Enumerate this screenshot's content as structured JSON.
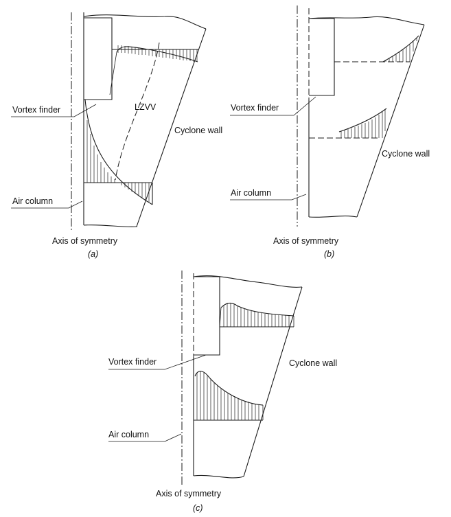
{
  "diagrams": [
    {
      "caption": "(a)",
      "labels": {
        "vortex_finder": "Vortex finder",
        "air_column": "Air column",
        "axis": "Axis of symmetry",
        "wall": "Cyclone wall",
        "lzvv": "LZVV"
      }
    },
    {
      "caption": "(b)",
      "labels": {
        "vortex_finder": "Vortex finder",
        "air_column": "Air column",
        "axis": "Axis of symmetry",
        "wall": "Cyclone wall"
      }
    },
    {
      "caption": "(c)",
      "labels": {
        "vortex_finder": "Vortex finder",
        "air_column": "Air column",
        "axis": "Axis of symmetry",
        "wall": "Cyclone wall"
      }
    }
  ]
}
